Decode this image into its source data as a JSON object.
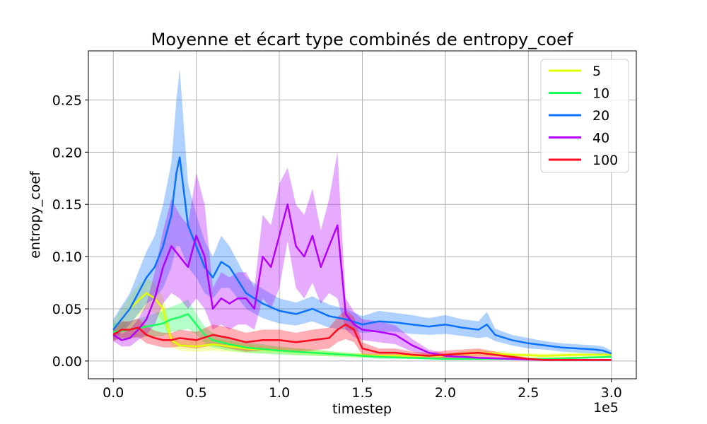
{
  "chart_data": {
    "type": "line",
    "title": "Moyenne et écart type combinés de entropy_coef",
    "xlabel": "timestep",
    "ylabel": "entropy_coef",
    "x_offset_label": "1e5",
    "xlim": [
      -0.15,
      3.15
    ],
    "ylim": [
      -0.017,
      0.297
    ],
    "xticks": [
      0.0,
      0.5,
      1.0,
      1.5,
      2.0,
      2.5,
      3.0
    ],
    "xtick_labels": [
      "0.0",
      "0.5",
      "1.0",
      "1.5",
      "2.0",
      "2.5",
      "3.0"
    ],
    "yticks": [
      0.0,
      0.05,
      0.1,
      0.15,
      0.2,
      0.25
    ],
    "ytick_labels": [
      "0.00",
      "0.05",
      "0.10",
      "0.15",
      "0.20",
      "0.25"
    ],
    "grid": true,
    "legend_position": "top-right",
    "series": [
      {
        "name": "5",
        "color": "#e0ff00",
        "x": [
          0.0,
          0.05,
          0.1,
          0.15,
          0.2,
          0.25,
          0.3,
          0.35,
          0.4,
          0.5,
          0.6,
          0.8,
          1.0,
          1.2,
          1.4,
          1.6,
          1.8,
          2.0,
          2.2,
          2.4,
          2.6,
          2.8,
          3.0
        ],
        "y": [
          0.03,
          0.04,
          0.05,
          0.058,
          0.065,
          0.06,
          0.05,
          0.02,
          0.015,
          0.014,
          0.016,
          0.012,
          0.01,
          0.008,
          0.006,
          0.005,
          0.005,
          0.005,
          0.008,
          0.006,
          0.005,
          0.006,
          0.006
        ],
        "std": [
          0.008,
          0.01,
          0.012,
          0.015,
          0.015,
          0.014,
          0.012,
          0.006,
          0.005,
          0.005,
          0.006,
          0.004,
          0.003,
          0.003,
          0.002,
          0.002,
          0.002,
          0.002,
          0.003,
          0.002,
          0.002,
          0.002,
          0.002
        ]
      },
      {
        "name": "10",
        "color": "#1aff5a",
        "x": [
          0.0,
          0.1,
          0.2,
          0.3,
          0.35,
          0.4,
          0.45,
          0.5,
          0.55,
          0.6,
          0.7,
          0.8,
          1.0,
          1.2,
          1.4,
          1.6,
          1.8,
          2.0,
          2.2,
          2.4,
          2.6,
          2.8,
          3.0
        ],
        "y": [
          0.028,
          0.03,
          0.033,
          0.036,
          0.04,
          0.042,
          0.045,
          0.035,
          0.025,
          0.02,
          0.016,
          0.013,
          0.01,
          0.008,
          0.006,
          0.004,
          0.003,
          0.002,
          0.002,
          0.002,
          0.002,
          0.003,
          0.004
        ],
        "std": [
          0.008,
          0.008,
          0.01,
          0.012,
          0.012,
          0.013,
          0.014,
          0.01,
          0.008,
          0.007,
          0.006,
          0.005,
          0.004,
          0.003,
          0.002,
          0.002,
          0.001,
          0.001,
          0.001,
          0.001,
          0.001,
          0.001,
          0.001
        ]
      },
      {
        "name": "20",
        "color": "#0a72ff",
        "x": [
          0.0,
          0.1,
          0.2,
          0.25,
          0.3,
          0.35,
          0.38,
          0.4,
          0.45,
          0.5,
          0.55,
          0.6,
          0.65,
          0.7,
          0.8,
          0.9,
          1.0,
          1.1,
          1.2,
          1.3,
          1.4,
          1.5,
          1.6,
          1.7,
          1.8,
          1.9,
          2.0,
          2.1,
          2.2,
          2.25,
          2.3,
          2.4,
          2.5,
          2.6,
          2.7,
          2.8,
          2.9,
          2.95,
          3.0
        ],
        "y": [
          0.03,
          0.05,
          0.08,
          0.09,
          0.11,
          0.14,
          0.18,
          0.195,
          0.13,
          0.11,
          0.09,
          0.08,
          0.095,
          0.09,
          0.065,
          0.055,
          0.048,
          0.045,
          0.05,
          0.043,
          0.04,
          0.035,
          0.038,
          0.037,
          0.035,
          0.033,
          0.035,
          0.032,
          0.03,
          0.035,
          0.025,
          0.02,
          0.017,
          0.015,
          0.013,
          0.012,
          0.011,
          0.01,
          0.007
        ],
        "std": [
          0.01,
          0.015,
          0.025,
          0.03,
          0.04,
          0.05,
          0.07,
          0.085,
          0.04,
          0.03,
          0.025,
          0.02,
          0.025,
          0.02,
          0.015,
          0.014,
          0.012,
          0.011,
          0.012,
          0.011,
          0.01,
          0.008,
          0.01,
          0.009,
          0.009,
          0.008,
          0.009,
          0.008,
          0.008,
          0.012,
          0.006,
          0.005,
          0.005,
          0.004,
          0.004,
          0.004,
          0.004,
          0.004,
          0.003
        ]
      },
      {
        "name": "40",
        "color": "#b300ff",
        "x": [
          0.0,
          0.05,
          0.1,
          0.15,
          0.2,
          0.25,
          0.3,
          0.35,
          0.4,
          0.45,
          0.5,
          0.55,
          0.6,
          0.65,
          0.7,
          0.75,
          0.8,
          0.85,
          0.9,
          0.95,
          1.0,
          1.05,
          1.1,
          1.15,
          1.2,
          1.25,
          1.3,
          1.35,
          1.4,
          1.45,
          1.5,
          1.6,
          1.7,
          1.8,
          1.9,
          2.0,
          2.2,
          2.4,
          2.6,
          2.8,
          3.0
        ],
        "y": [
          0.025,
          0.02,
          0.022,
          0.03,
          0.04,
          0.06,
          0.09,
          0.11,
          0.1,
          0.09,
          0.12,
          0.1,
          0.05,
          0.06,
          0.055,
          0.06,
          0.06,
          0.05,
          0.1,
          0.09,
          0.12,
          0.15,
          0.11,
          0.1,
          0.12,
          0.09,
          0.11,
          0.13,
          0.045,
          0.035,
          0.03,
          0.028,
          0.025,
          0.015,
          0.008,
          0.005,
          0.003,
          0.002,
          0.001,
          0.001,
          0.001
        ],
        "std": [
          0.006,
          0.006,
          0.008,
          0.01,
          0.015,
          0.025,
          0.035,
          0.045,
          0.04,
          0.04,
          0.06,
          0.05,
          0.02,
          0.025,
          0.025,
          0.025,
          0.025,
          0.02,
          0.04,
          0.04,
          0.05,
          0.035,
          0.04,
          0.04,
          0.045,
          0.035,
          0.045,
          0.07,
          0.015,
          0.012,
          0.01,
          0.01,
          0.009,
          0.006,
          0.003,
          0.002,
          0.001,
          0.001,
          0.0005,
          0.0005,
          0.0005
        ],
        "comment": ""
      },
      {
        "name": "100",
        "color": "#ff0a1e",
        "x": [
          0.0,
          0.05,
          0.1,
          0.15,
          0.2,
          0.25,
          0.3,
          0.35,
          0.4,
          0.5,
          0.6,
          0.7,
          0.8,
          0.9,
          1.0,
          1.1,
          1.2,
          1.3,
          1.35,
          1.4,
          1.45,
          1.5,
          1.6,
          1.7,
          1.8,
          1.9,
          2.0,
          2.1,
          2.2,
          2.3,
          2.4,
          2.5,
          2.6,
          2.8,
          3.0
        ],
        "y": [
          0.025,
          0.03,
          0.03,
          0.032,
          0.025,
          0.022,
          0.02,
          0.02,
          0.022,
          0.02,
          0.025,
          0.022,
          0.018,
          0.02,
          0.02,
          0.018,
          0.02,
          0.022,
          0.03,
          0.035,
          0.03,
          0.012,
          0.008,
          0.008,
          0.006,
          0.005,
          0.006,
          0.007,
          0.008,
          0.006,
          0.004,
          0.002,
          0.001,
          0.001,
          0.001
        ],
        "std": [
          0.006,
          0.008,
          0.008,
          0.009,
          0.008,
          0.007,
          0.007,
          0.007,
          0.008,
          0.008,
          0.01,
          0.01,
          0.009,
          0.01,
          0.01,
          0.009,
          0.01,
          0.01,
          0.012,
          0.014,
          0.012,
          0.006,
          0.004,
          0.004,
          0.003,
          0.003,
          0.004,
          0.004,
          0.004,
          0.003,
          0.002,
          0.001,
          0.0005,
          0.0005,
          0.0005
        ]
      }
    ]
  }
}
